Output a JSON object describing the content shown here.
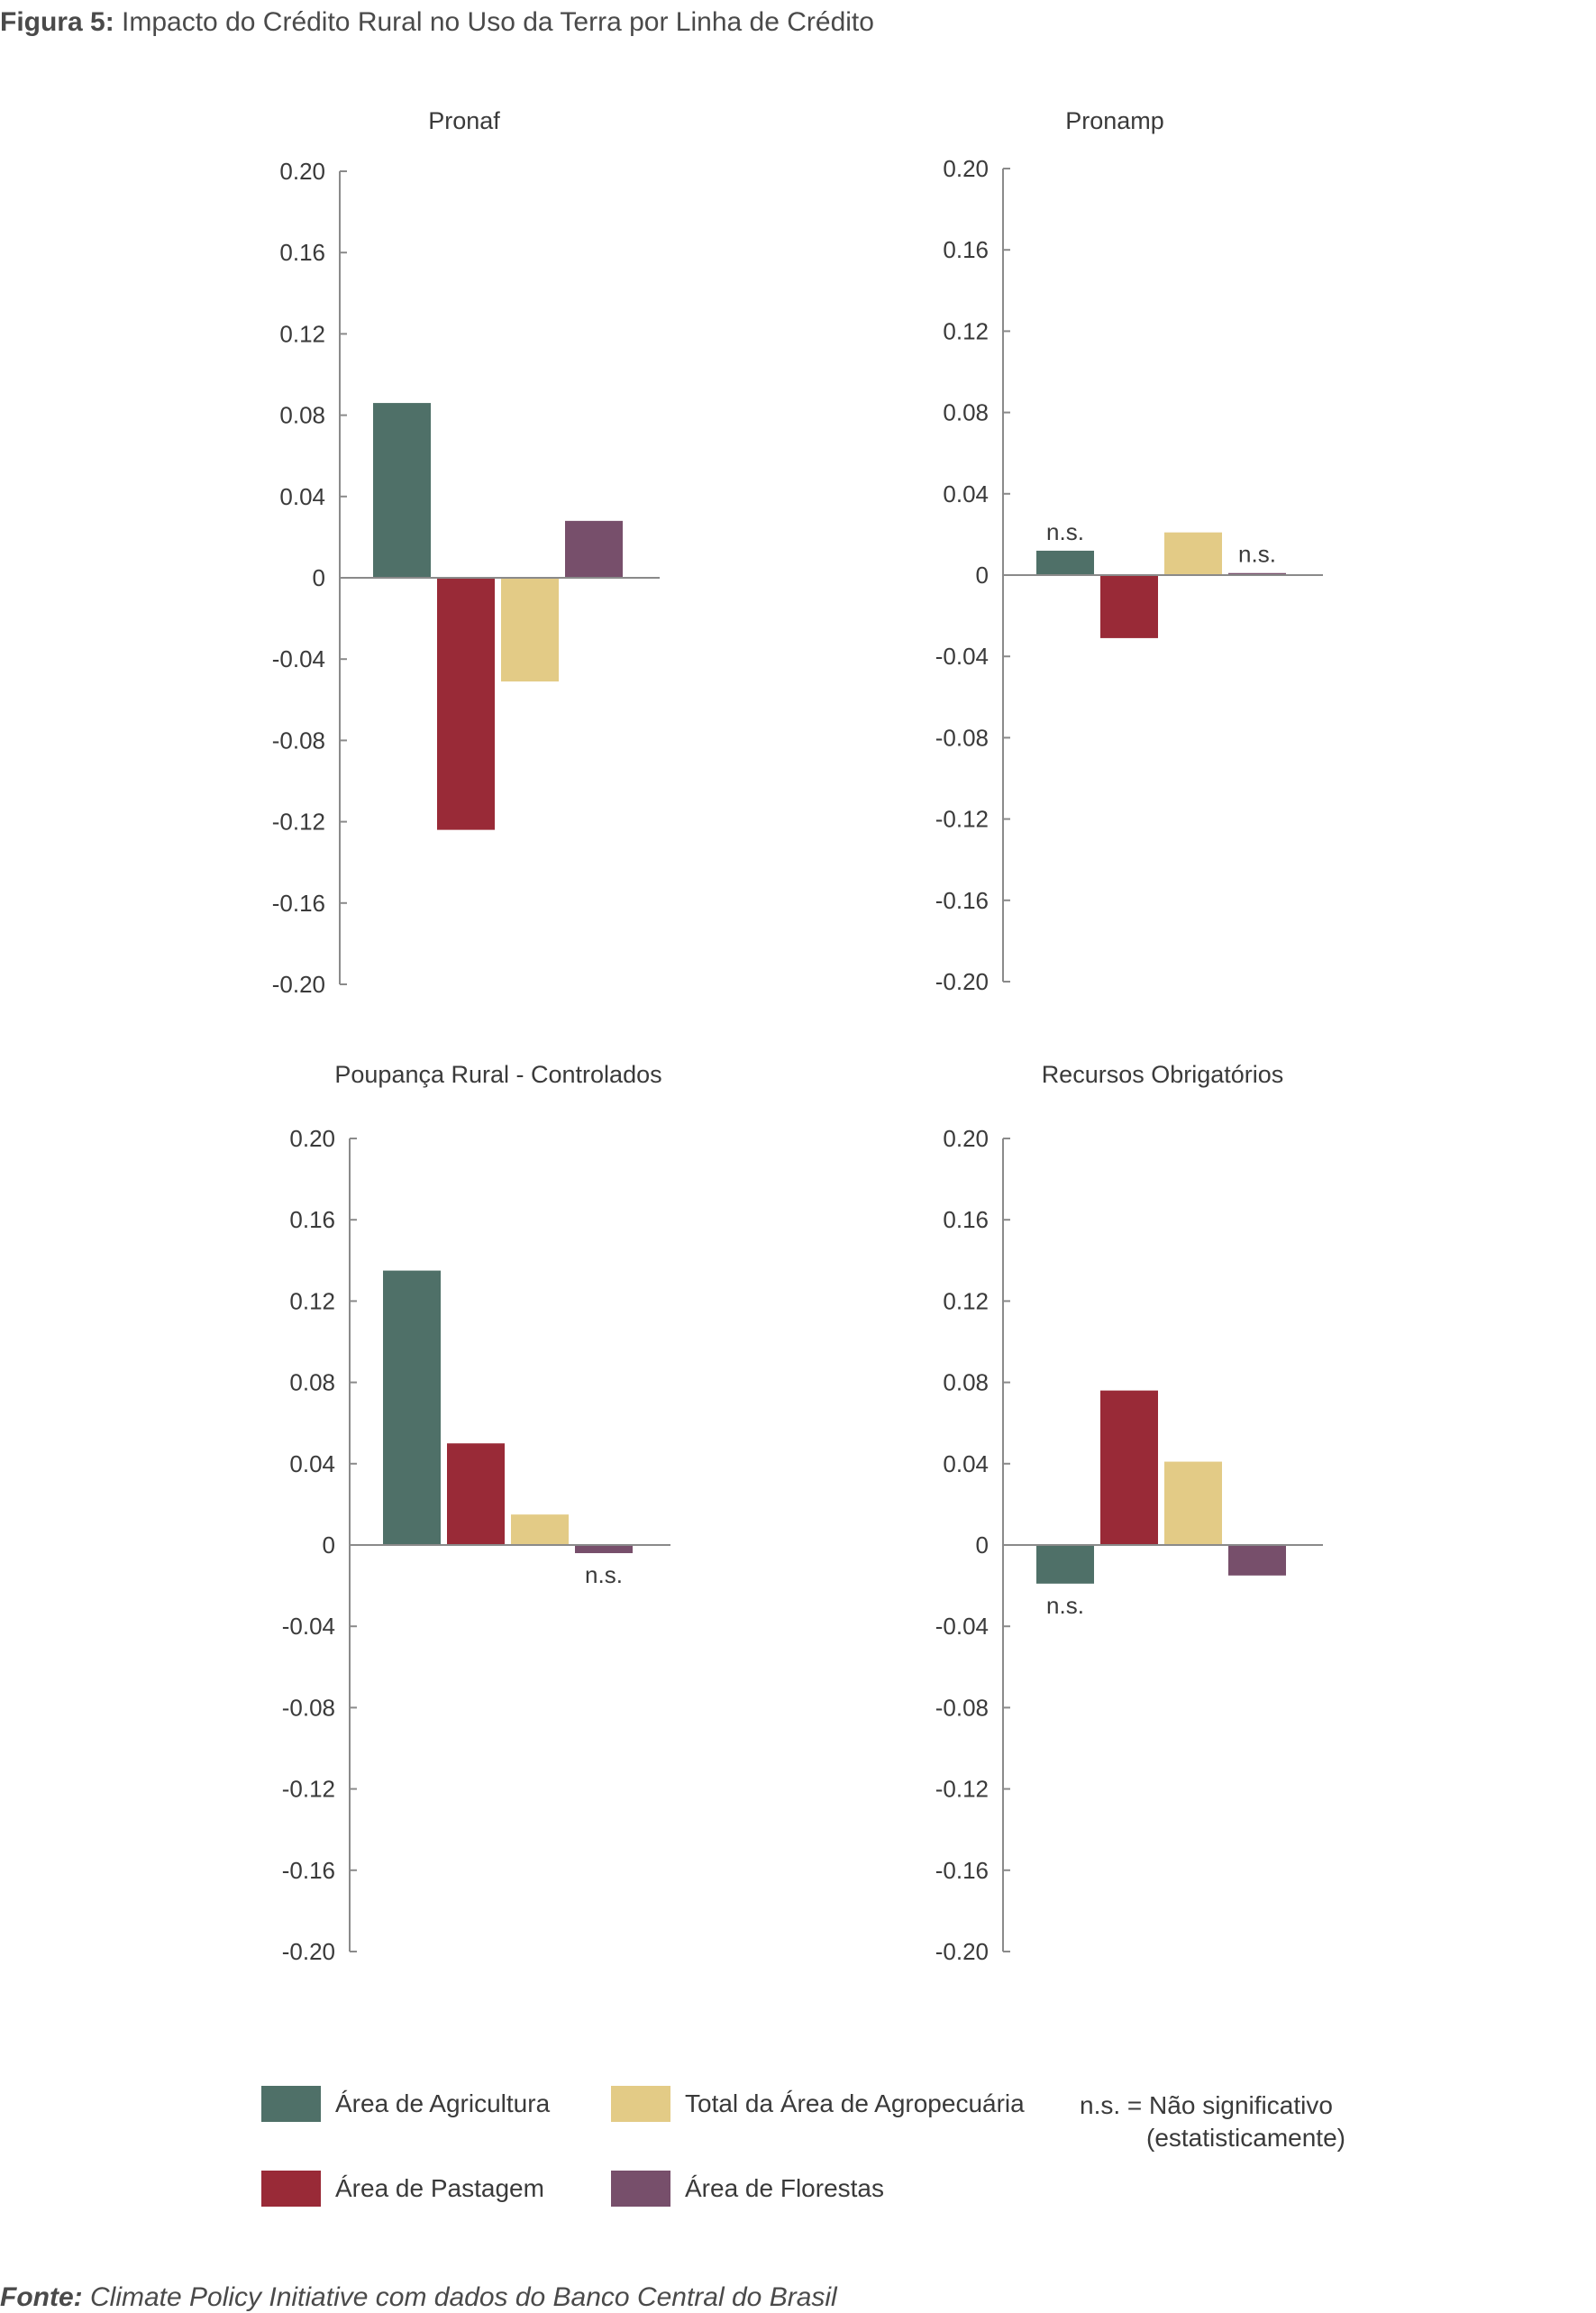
{
  "figure": {
    "label": "Figura 5:",
    "title": "Impacto do Crédito Rural no Uso da Terra por Linha de Crédito"
  },
  "source": {
    "label": "Fonte:",
    "text": "Climate Policy Initiative com dados do Banco Central do Brasil"
  },
  "colors": {
    "agricultura": "#4f7068",
    "pastagem": "#992a37",
    "agropecuaria": "#e3cb86",
    "florestas": "#774f6b",
    "axis": "#8a8a8a"
  },
  "legend": {
    "agricultura": "Área de Agricultura",
    "pastagem": "Área de Pastagem",
    "agropecuaria": "Total da Área de Agropecuária",
    "florestas": "Área de Florestas",
    "ns_key": "n.s. =",
    "ns_text": "Não significativo",
    "ns_text2": "(estatisticamente)"
  },
  "chart_data": [
    {
      "type": "bar",
      "title": "Pronaf",
      "categories": [
        "Área de Agricultura",
        "Área de Pastagem",
        "Total da Área de Agropecuária",
        "Área de Florestas"
      ],
      "values": [
        0.086,
        -0.124,
        -0.051,
        0.028
      ],
      "significance": [
        "",
        "",
        "",
        ""
      ],
      "ylim": [
        -0.2,
        0.2
      ],
      "yticks": [
        "0.20",
        "0.16",
        "0.12",
        "0.08",
        "0.04",
        "0",
        "-0.04",
        "-0.08",
        "-0.12",
        "-0.16",
        "-0.20"
      ]
    },
    {
      "type": "bar",
      "title": "Pronamp",
      "categories": [
        "Área de Agricultura",
        "Área de Pastagem",
        "Total da Área de Agropecuária",
        "Área de Florestas"
      ],
      "values": [
        0.012,
        -0.031,
        0.021,
        0.001
      ],
      "significance": [
        "n.s.",
        "",
        "",
        "n.s."
      ],
      "ylim": [
        -0.2,
        0.2
      ],
      "yticks": [
        "0.20",
        "0.16",
        "0.12",
        "0.08",
        "0.04",
        "0",
        "-0.04",
        "-0.08",
        "-0.12",
        "-0.16",
        "-0.20"
      ]
    },
    {
      "type": "bar",
      "title": "Poupança Rural - Controlados",
      "categories": [
        "Área de Agricultura",
        "Área de Pastagem",
        "Total da Área de Agropecuária",
        "Área de Florestas"
      ],
      "values": [
        0.135,
        0.05,
        0.015,
        -0.004
      ],
      "significance": [
        "",
        "",
        "",
        "n.s."
      ],
      "ylim": [
        -0.2,
        0.2
      ],
      "yticks": [
        "0.20",
        "0.16",
        "0.12",
        "0.08",
        "0.04",
        "0",
        "-0.04",
        "-0.08",
        "-0.12",
        "-0.16",
        "-0.20"
      ]
    },
    {
      "type": "bar",
      "title": "Recursos Obrigatórios",
      "categories": [
        "Área de Agricultura",
        "Área de Pastagem",
        "Total da Área de Agropecuária",
        "Área de Florestas"
      ],
      "values": [
        -0.019,
        0.076,
        0.041,
        -0.015
      ],
      "significance": [
        "n.s.",
        "",
        "",
        ""
      ],
      "ylim": [
        -0.2,
        0.2
      ],
      "yticks": [
        "0.20",
        "0.16",
        "0.12",
        "0.08",
        "0.04",
        "0",
        "-0.04",
        "-0.08",
        "-0.12",
        "-0.16",
        "-0.20"
      ]
    }
  ]
}
